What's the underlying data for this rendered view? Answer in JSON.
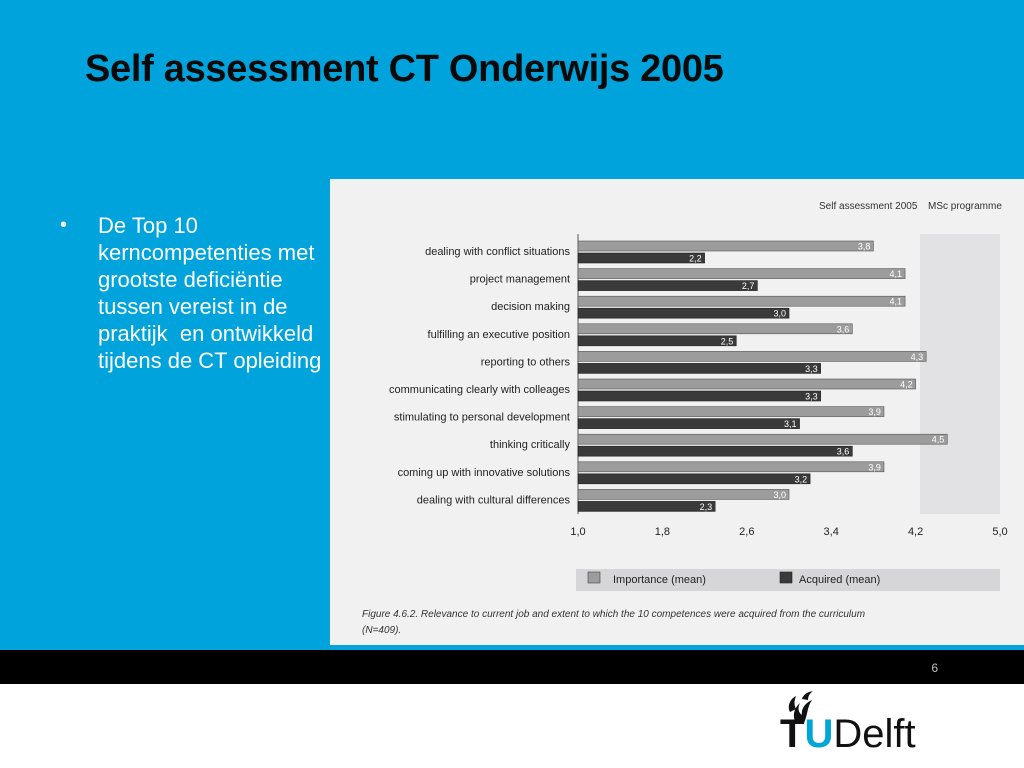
{
  "slide": {
    "title": "Self assessment CT Onderwijs 2005",
    "bullet_marker": "•",
    "bullet_text": "De Top 10 kerncompetenties met grootste deficiëntie tussen vereist in de praktijk  en ontwikkeld tijdens de CT opleiding",
    "page_number": "6",
    "background_color": "#00a3dc"
  },
  "logo": {
    "t": "T",
    "u": "U",
    "delft": "Delft",
    "icon": "flame-icon"
  },
  "chart_data": {
    "type": "bar",
    "orientation": "horizontal",
    "title": "Self assessment 2005",
    "subtitle": "MSc programme",
    "categories": [
      "dealing with conflict situations",
      "project management",
      "decision making",
      "fulfilling an executive position",
      "reporting to others",
      "communicating clearly with colleages",
      "stimulating to personal development",
      "thinking critically",
      "coming up with innovative solutions",
      "dealing with cultural differences"
    ],
    "series": [
      {
        "name": "Importance (mean)",
        "values": [
          3.8,
          4.1,
          4.1,
          3.6,
          4.3,
          4.2,
          3.9,
          4.5,
          3.9,
          3.0
        ],
        "labels": [
          "3,8",
          "4,1",
          "4,1",
          "3,6",
          "4,3",
          "4,2",
          "3,9",
          "4,5",
          "3,9",
          "3,0"
        ],
        "color": "#9c9c9c"
      },
      {
        "name": "Acquired (mean)",
        "values": [
          2.2,
          2.7,
          3.0,
          2.5,
          3.3,
          3.3,
          3.1,
          3.6,
          3.2,
          2.3
        ],
        "labels": [
          "2,2",
          "2,7",
          "3,0",
          "2,5",
          "3,3",
          "3,3",
          "3,1",
          "3,6",
          "3,2",
          "2,3"
        ],
        "color": "#3a3a3a"
      }
    ],
    "x_ticks": [
      1.0,
      1.8,
      2.6,
      3.4,
      4.2,
      5.0
    ],
    "x_tick_labels": [
      "1,0",
      "1,8",
      "2,6",
      "3,4",
      "4,2",
      "5,0"
    ],
    "xlim": [
      1.0,
      5.0
    ],
    "grid": false,
    "legend_position": "bottom",
    "caption": "Figure 4.6.2. Relevance to current job and extent to which the 10 competences were acquired from the curriculum (N=409)."
  }
}
